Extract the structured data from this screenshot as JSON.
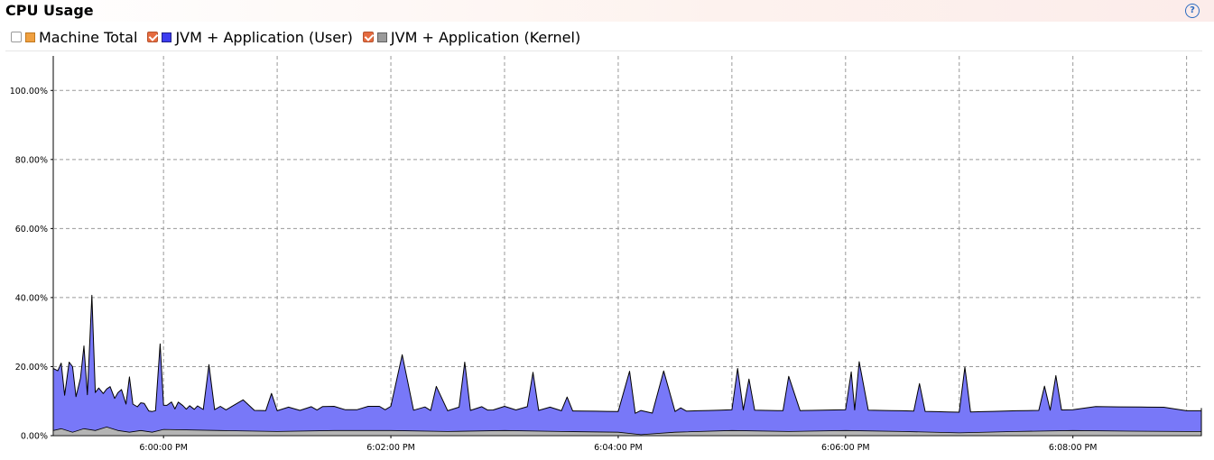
{
  "panel": {
    "title": "CPU Usage",
    "help_icon": "question-circle-icon"
  },
  "legend": [
    {
      "label": "Machine Total",
      "checked": false,
      "color": "#f0a040"
    },
    {
      "label": "JVM + Application (User)",
      "checked": true,
      "color": "#3c3cf0"
    },
    {
      "label": "JVM + Application (Kernel)",
      "checked": true,
      "color": "#9a9a9a"
    }
  ],
  "chart_data": {
    "type": "area",
    "stacked": true,
    "ylim": [
      0,
      110
    ],
    "y_ticks": [
      0,
      20,
      40,
      60,
      80,
      100
    ],
    "y_tick_labels": [
      "0.00%",
      "20.00%",
      "40.00%",
      "60.00%",
      "80.00%",
      "100.00%"
    ],
    "x_ticks": [
      6.0,
      6.033,
      6.067,
      6.1,
      6.133,
      6.167,
      6.2,
      6.233,
      6.267,
      6.3,
      6.333
    ],
    "x_tick_labels": [
      "6:00:00 PM",
      "6:02:00 PM",
      "6:04:00 PM",
      "6:06:00 PM",
      "6:08:00 PM"
    ],
    "x_time_labels": [
      "6:00:00 PM",
      "6:02:00 PM",
      "6:04:00 PM",
      "6:06:00 PM",
      "6:08:00 PM"
    ],
    "x_time_minutes": [
      0,
      2,
      4,
      6,
      8
    ],
    "xlim_minutes": [
      -0.97,
      9.13
    ],
    "grid": true,
    "series": [
      {
        "name": "JVM + Application (Kernel)",
        "color": "#b4b4b4",
        "x_minutes": [
          -0.97,
          -0.9,
          -0.8,
          -0.7,
          -0.6,
          -0.5,
          -0.4,
          -0.3,
          -0.2,
          -0.1,
          0.0,
          0.5,
          1.0,
          1.5,
          2.0,
          2.5,
          3.0,
          3.5,
          4.0,
          4.2,
          4.5,
          5.0,
          5.5,
          6.0,
          6.5,
          7.0,
          7.5,
          8.0,
          8.5,
          9.0,
          9.13
        ],
        "values": [
          1.5,
          2.0,
          1.0,
          2.0,
          1.5,
          2.5,
          1.5,
          1.0,
          1.5,
          1.0,
          1.8,
          1.5,
          1.2,
          1.5,
          1.5,
          1.2,
          1.5,
          1.2,
          1.0,
          0.3,
          1.0,
          1.5,
          1.2,
          1.5,
          1.2,
          0.8,
          1.2,
          1.5,
          1.3,
          1.2,
          1.2
        ]
      },
      {
        "name": "JVM + Application (User)",
        "color": "#7878f8",
        "x_minutes": [
          -0.97,
          -0.93,
          -0.9,
          -0.87,
          -0.83,
          -0.8,
          -0.77,
          -0.73,
          -0.7,
          -0.67,
          -0.63,
          -0.6,
          -0.57,
          -0.53,
          -0.5,
          -0.47,
          -0.43,
          -0.4,
          -0.37,
          -0.33,
          -0.3,
          -0.27,
          -0.23,
          -0.2,
          -0.17,
          -0.13,
          -0.1,
          -0.07,
          -0.03,
          0.0,
          0.03,
          0.07,
          0.1,
          0.13,
          0.17,
          0.2,
          0.23,
          0.27,
          0.3,
          0.35,
          0.4,
          0.45,
          0.5,
          0.55,
          0.6,
          0.7,
          0.8,
          0.9,
          0.95,
          1.0,
          1.1,
          1.2,
          1.3,
          1.35,
          1.4,
          1.5,
          1.6,
          1.7,
          1.8,
          1.9,
          1.95,
          2.0,
          2.1,
          2.2,
          2.3,
          2.35,
          2.4,
          2.5,
          2.6,
          2.65,
          2.7,
          2.8,
          2.85,
          2.9,
          3.0,
          3.1,
          3.2,
          3.25,
          3.3,
          3.4,
          3.5,
          3.55,
          3.6,
          3.7,
          3.8,
          3.9,
          4.0,
          4.1,
          4.15,
          4.2,
          4.3,
          4.4,
          4.5,
          4.55,
          4.6,
          4.7,
          4.8,
          4.9,
          5.0,
          5.05,
          5.1,
          5.15,
          5.2,
          5.3,
          5.4,
          5.45,
          5.5,
          5.6,
          5.7,
          5.8,
          5.9,
          6.0,
          6.05,
          6.08,
          6.12,
          6.2,
          6.3,
          6.4,
          6.5,
          6.6,
          6.65,
          6.7,
          6.8,
          6.9,
          7.0,
          7.05,
          7.1,
          7.2,
          7.3,
          7.4,
          7.5,
          7.6,
          7.7,
          7.75,
          7.8,
          7.85,
          7.9,
          8.0,
          8.2,
          8.4,
          8.6,
          8.8,
          9.0,
          9.13
        ],
        "values": [
          18,
          17,
          19,
          10,
          20,
          19,
          10,
          15,
          24,
          10,
          39,
          11,
          12,
          10,
          11,
          12,
          9,
          11,
          12,
          8,
          16,
          8,
          7,
          8,
          8,
          6,
          6,
          6,
          25,
          7,
          7,
          8,
          6,
          8,
          7,
          6,
          7,
          6,
          7,
          6,
          19,
          6,
          7,
          6,
          7,
          9,
          6,
          6,
          11,
          6,
          7,
          6,
          7,
          6,
          7,
          7,
          6,
          6,
          7,
          7,
          6,
          7,
          22,
          6,
          7,
          6,
          13,
          6,
          7,
          20,
          6,
          7,
          6,
          6,
          7,
          6,
          7,
          17,
          6,
          7,
          6,
          10,
          6,
          6,
          6,
          6,
          6,
          18,
          6,
          7,
          6,
          18,
          6,
          7,
          6,
          6,
          6,
          6,
          6,
          18,
          6,
          15,
          6,
          6,
          6,
          6,
          16,
          6,
          6,
          6,
          6,
          6,
          17,
          6,
          20,
          6,
          6,
          6,
          6,
          6,
          14,
          6,
          6,
          6,
          6,
          19,
          6,
          6,
          6,
          6,
          6,
          6,
          6,
          13,
          6,
          16,
          6,
          6,
          7,
          7,
          7,
          7,
          6,
          6
        ]
      }
    ]
  }
}
